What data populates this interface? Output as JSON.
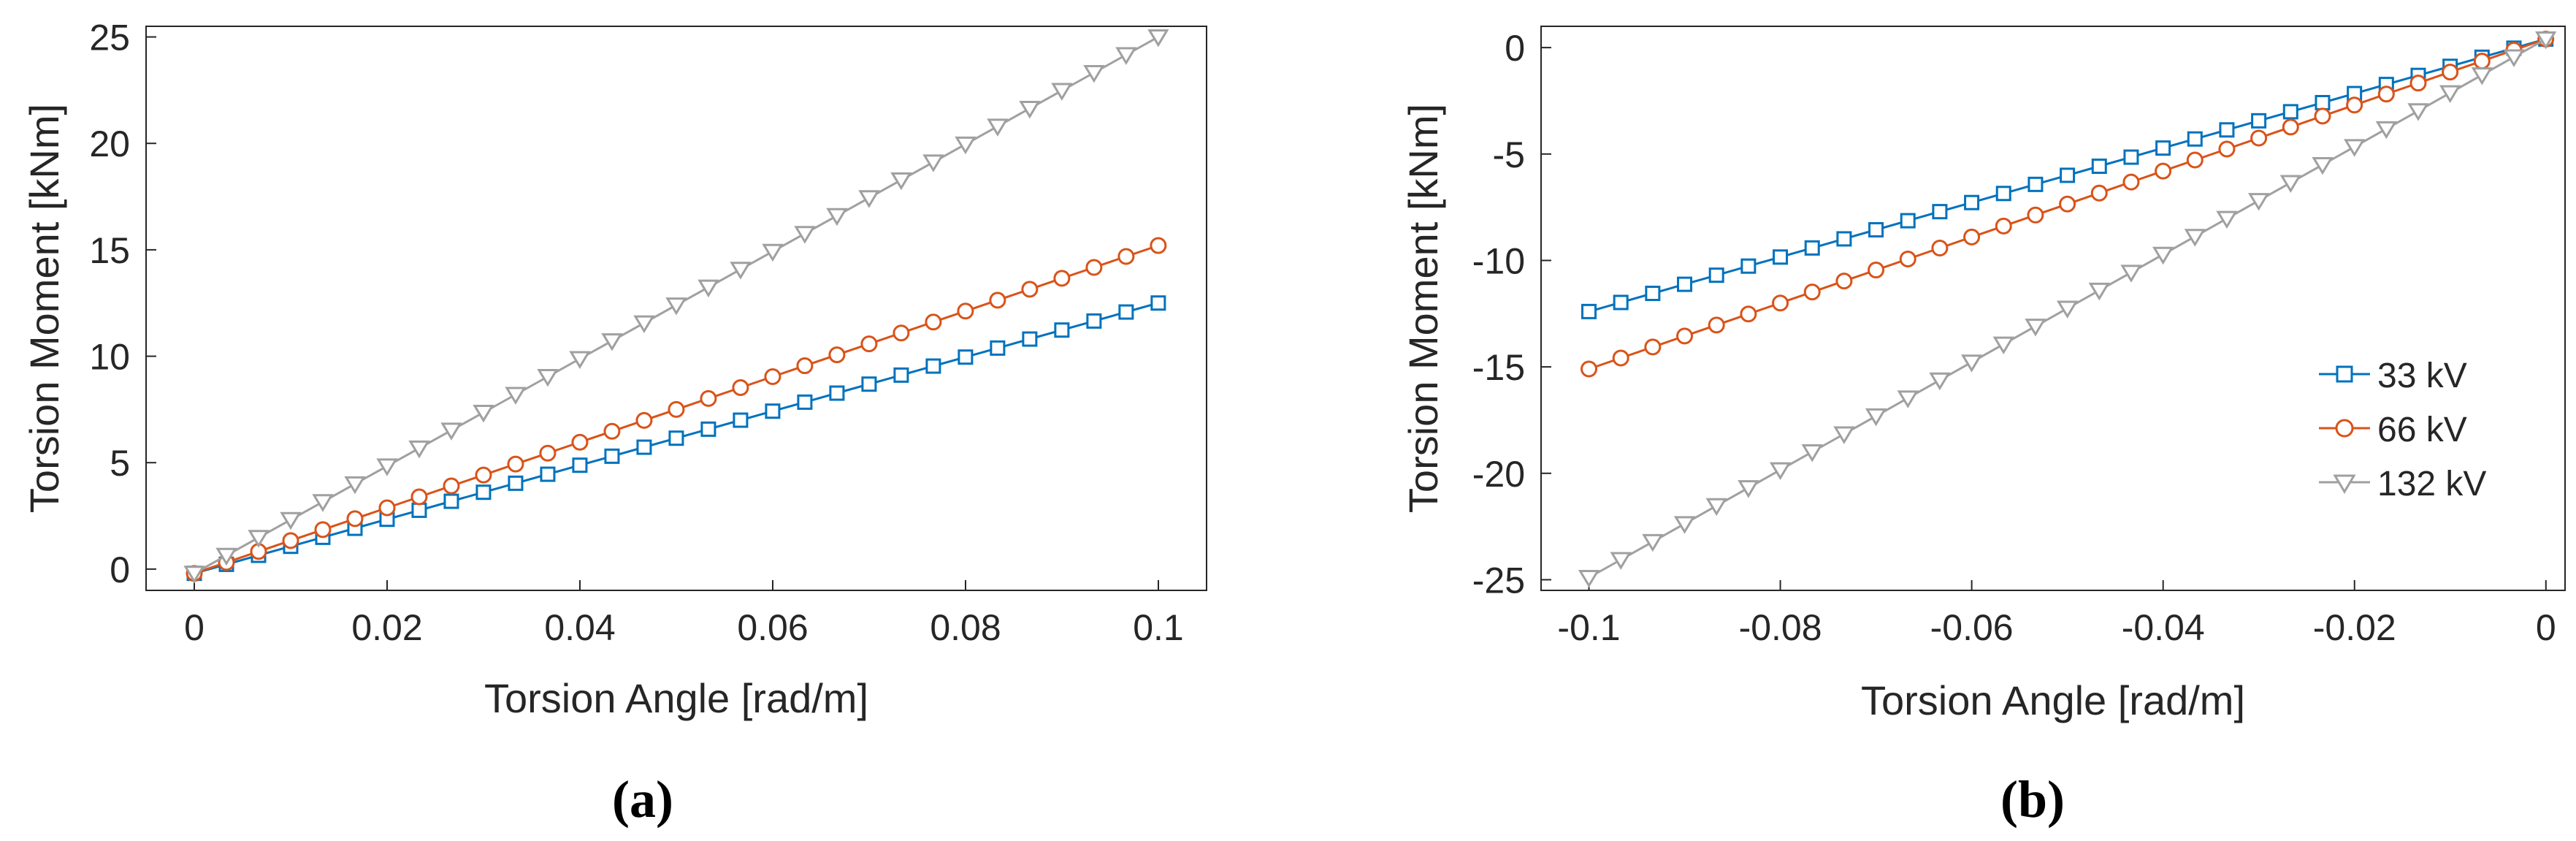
{
  "chart_data": [
    {
      "type": "line",
      "panel_label": "(a)",
      "xlabel": "Torsion Angle [rad/m]",
      "ylabel": "Torsion Moment [kNm]",
      "xlim": [
        -0.005,
        0.105
      ],
      "ylim": [
        -1,
        25.5
      ],
      "xticks": [
        0,
        0.02,
        0.04,
        0.06,
        0.08,
        0.1
      ],
      "xtick_labels": [
        "0",
        "0.02",
        "0.04",
        "0.06",
        "0.08",
        "0.1"
      ],
      "yticks": [
        0,
        5,
        10,
        15,
        20,
        25
      ],
      "ytick_labels": [
        "0",
        "5",
        "10",
        "15",
        "20",
        "25"
      ],
      "x_start": 0,
      "x_step": 0.003333,
      "n_points": 31,
      "legend": false,
      "series": [
        {
          "name": "33 kV",
          "marker": "square",
          "y_start": -0.2,
          "y_end": 12.5
        },
        {
          "name": "66 kV",
          "marker": "circle",
          "y_start": -0.2,
          "y_end": 15.2
        },
        {
          "name": "132 kV",
          "marker": "triangle-down",
          "y_start": -0.2,
          "y_end": 25.0
        }
      ]
    },
    {
      "type": "line",
      "panel_label": "(b)",
      "xlabel": "Torsion Angle [rad/m]",
      "ylabel": "Torsion Moment [kNm]",
      "xlim": [
        -0.105,
        0.002
      ],
      "ylim": [
        -25.5,
        1
      ],
      "xticks": [
        -0.1,
        -0.08,
        -0.06,
        -0.04,
        -0.02,
        0
      ],
      "xtick_labels": [
        "-0.1",
        "-0.08",
        "-0.06",
        "-0.04",
        "-0.02",
        "0"
      ],
      "yticks": [
        0,
        -5,
        -10,
        -15,
        -20,
        -25
      ],
      "ytick_labels": [
        "0",
        "-5",
        "-10",
        "-15",
        "-20",
        "-25"
      ],
      "x_start": -0.1,
      "x_step": 0.003333,
      "n_points": 31,
      "legend": true,
      "legend_position": "right",
      "series": [
        {
          "name": "33 kV",
          "marker": "square",
          "y_start": -12.4,
          "y_end": 0.4
        },
        {
          "name": "66 kV",
          "marker": "circle",
          "y_start": -15.1,
          "y_end": 0.4
        },
        {
          "name": "132 kV",
          "marker": "triangle-down",
          "y_start": -24.9,
          "y_end": 0.4
        }
      ]
    }
  ],
  "colors": {
    "33 kV": "#0072BD",
    "66 kV": "#D95319",
    "132 kV": "#A0A0A0",
    "axis": "#262626"
  }
}
